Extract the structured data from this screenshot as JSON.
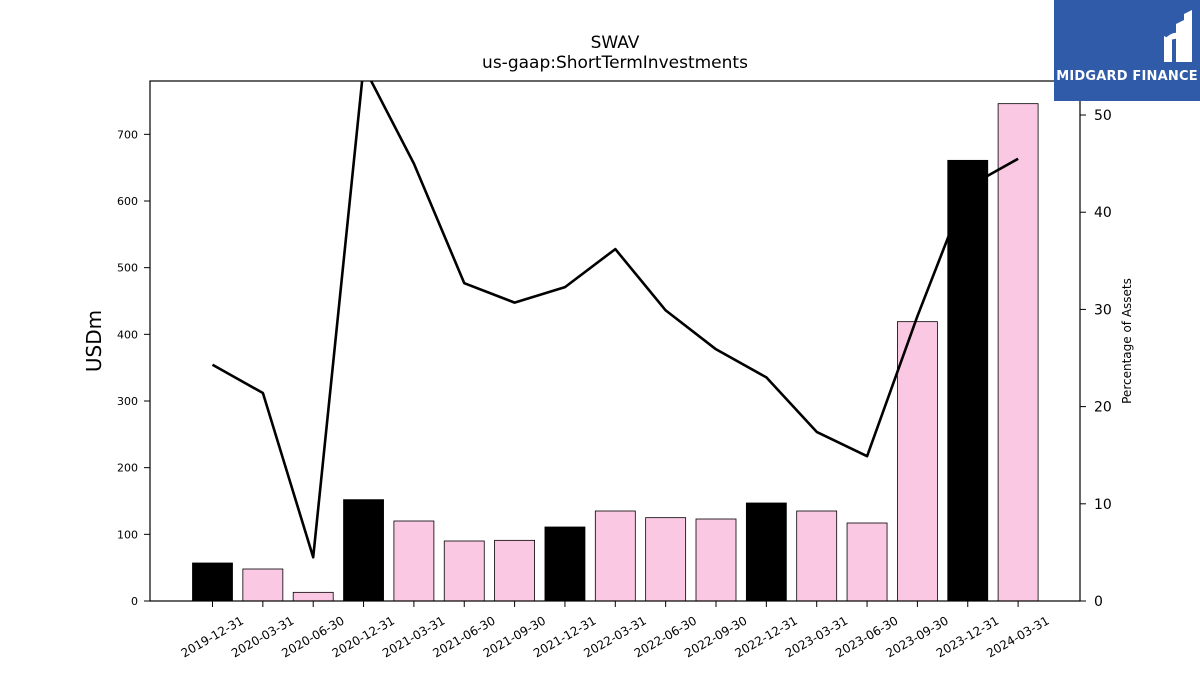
{
  "chart_data": {
    "type": "bar",
    "title": "SWAV",
    "subtitle": "us-gaap:ShortTermInvestments",
    "ylabel": "USDm",
    "y2label": "Percentage of Assets",
    "ylim": [
      0,
      780
    ],
    "y2lim": [
      0,
      53.5
    ],
    "yticks": [
      0,
      100,
      200,
      300,
      400,
      500,
      600,
      700
    ],
    "y2ticks": [
      0,
      10,
      20,
      30,
      40,
      50
    ],
    "categories": [
      "2019-12-31",
      "2020-03-31",
      "2020-06-30",
      "2020-12-31",
      "2021-03-31",
      "2021-06-30",
      "2021-09-30",
      "2021-12-31",
      "2022-03-31",
      "2022-06-30",
      "2022-09-30",
      "2022-12-31",
      "2023-03-31",
      "2023-06-30",
      "2023-09-30",
      "2023-12-31",
      "2024-03-31"
    ],
    "values": [
      57,
      48,
      13,
      152,
      120,
      90,
      91,
      111,
      135,
      125,
      123,
      147,
      135,
      117,
      419,
      661,
      746
    ],
    "bar_colors": [
      "#000000",
      "#fbc8e4",
      "#fbc8e4",
      "#000000",
      "#fbc8e4",
      "#fbc8e4",
      "#fbc8e4",
      "#000000",
      "#fbc8e4",
      "#fbc8e4",
      "#fbc8e4",
      "#000000",
      "#fbc8e4",
      "#fbc8e4",
      "#fbc8e4",
      "#000000",
      "#fbc8e4"
    ],
    "line_values": [
      24.3,
      21.4,
      4.5,
      55.0,
      45.0,
      32.7,
      30.7,
      32.3,
      36.2,
      29.9,
      25.9,
      23.0,
      17.4,
      14.9,
      29.3,
      42.6,
      45.5
    ],
    "line_color": "#000000"
  },
  "logo": {
    "text": "MIDGARD FINANCE",
    "color": "#2f5ba8"
  }
}
